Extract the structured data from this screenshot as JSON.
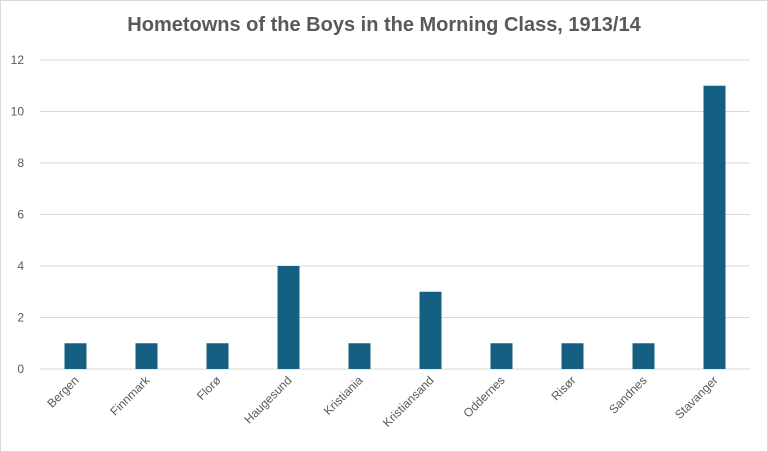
{
  "chart_data": {
    "type": "bar",
    "title": "Hometowns of the Boys in the Morning Class, 1913/14",
    "xlabel": "",
    "ylabel": "",
    "categories": [
      "Bergen",
      "Finnmark",
      "Florø",
      "Haugesund",
      "Kristiania",
      "Kristiansand",
      "Oddernes",
      "Risør",
      "Sandnes",
      "Stavanger"
    ],
    "values": [
      1,
      1,
      1,
      4,
      1,
      3,
      1,
      1,
      1,
      11
    ],
    "ylim": [
      0,
      12
    ],
    "yticks": [
      0,
      2,
      4,
      6,
      8,
      10,
      12
    ],
    "grid": true,
    "legend": "none",
    "bar_color": "#156082",
    "grid_color": "#d9d9d9"
  }
}
